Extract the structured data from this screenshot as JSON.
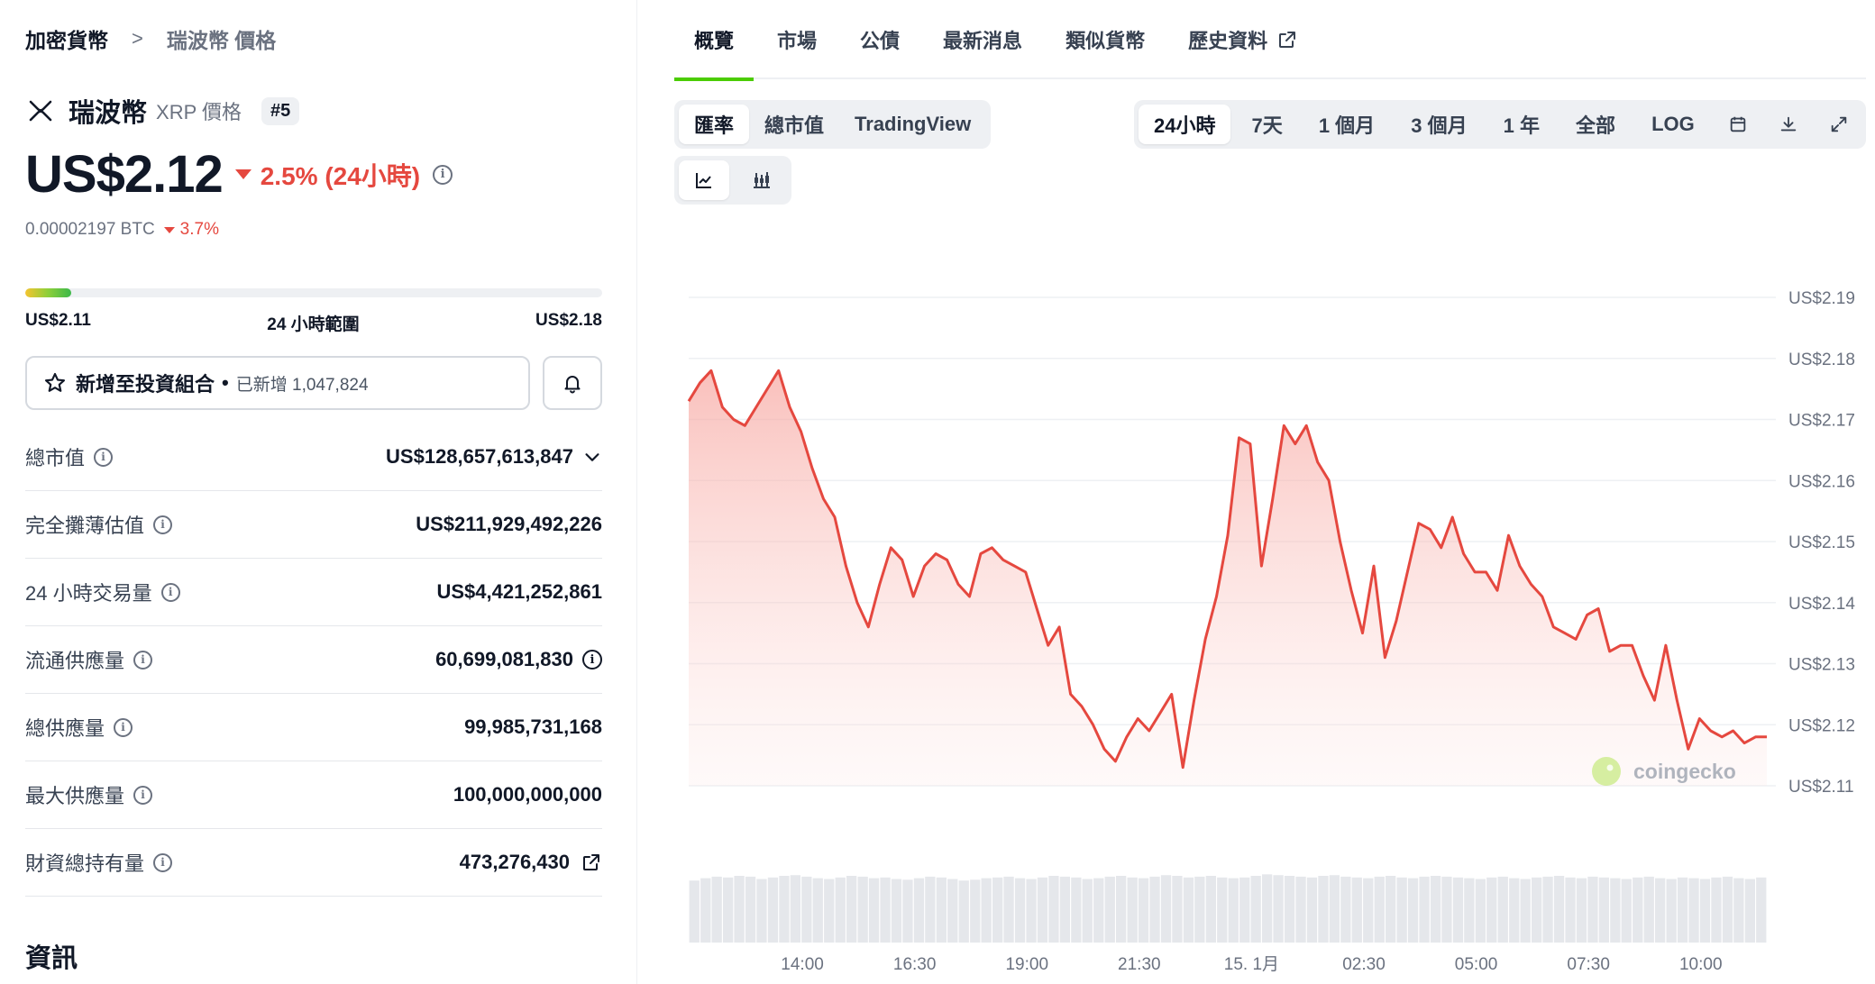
{
  "breadcrumb": {
    "root": "加密貨幣",
    "separator": ">",
    "current": "瑞波幣 價格"
  },
  "coin": {
    "name": "瑞波幣",
    "symbol_label": "XRP 價格",
    "rank": "#5"
  },
  "price": {
    "value": "US$2.12",
    "change_24h": "2.5% (24小時)",
    "btc_value": "0.00002197 BTC",
    "btc_change": "3.7%"
  },
  "range_24h": {
    "low": "US$2.11",
    "label": "24 小時範圍",
    "high": "US$2.18",
    "position_fraction": 0.08
  },
  "portfolio": {
    "label": "新增至投資組合",
    "dot": "•",
    "added": "已新增 1,047,824"
  },
  "stats": [
    {
      "label": "總市值",
      "value": "US$128,657,613,847"
    },
    {
      "label": "完全攤薄估值",
      "value": "US$211,929,492,226"
    },
    {
      "label": "24 小時交易量",
      "value": "US$4,421,252,861"
    },
    {
      "label": "流通供應量",
      "value": "60,699,081,830"
    },
    {
      "label": "總供應量",
      "value": "99,985,731,168"
    },
    {
      "label": "最大供應量",
      "value": "100,000,000,000"
    },
    {
      "label": "財資總持有量",
      "value": "473,276,430"
    }
  ],
  "info_section_title": "資訊",
  "tabs": [
    "概覽",
    "市場",
    "公債",
    "最新消息",
    "類似貨幣",
    "歷史資料"
  ],
  "chart_type_tabs": [
    "匯率",
    "總市值",
    "TradingView"
  ],
  "range_tabs": [
    "24小時",
    "7天",
    "1 個月",
    "3 個月",
    "1 年",
    "全部",
    "LOG"
  ],
  "watermark": "coingecko",
  "colors": {
    "accent_green": "#4bcc00",
    "down_red": "#e5483f",
    "line": "#e5483f"
  },
  "chart_data": {
    "type": "area",
    "title": "",
    "xlabel": "",
    "ylabel": "",
    "y_ticks": [
      "US$2.19",
      "US$2.18",
      "US$2.17",
      "US$2.16",
      "US$2.15",
      "US$2.14",
      "US$2.13",
      "US$2.12",
      "US$2.11"
    ],
    "ylim": [
      2.106,
      2.19
    ],
    "x_ticks": [
      "14:00",
      "16:30",
      "19:00",
      "21:30",
      "15. 1月",
      "02:30",
      "05:00",
      "07:30",
      "10:00"
    ],
    "x_tick_positions_hours": [
      2.53,
      5.03,
      7.53,
      10.03,
      12.53,
      15.03,
      17.53,
      20.03,
      22.53
    ],
    "series": [
      {
        "x_hours": [
          0,
          0.25,
          0.5,
          0.75,
          1.0,
          1.25,
          1.5,
          1.75,
          2.0,
          2.25,
          2.5,
          2.75,
          3.0,
          3.25,
          3.5,
          3.75,
          4.0,
          4.25,
          4.5,
          4.75,
          5.0,
          5.25,
          5.5,
          5.75,
          6.0,
          6.25,
          6.5,
          6.75,
          7.0,
          7.25,
          7.5,
          7.75,
          8.0,
          8.25,
          8.5,
          8.75,
          9.0,
          9.25,
          9.5,
          9.75,
          10.0,
          10.25,
          10.5,
          10.75,
          11.0,
          11.25,
          11.5,
          11.75,
          12.0,
          12.25,
          12.5,
          12.75,
          13.0,
          13.25,
          13.5,
          13.75,
          14.0,
          14.25,
          14.5,
          14.75,
          15.0,
          15.25,
          15.5,
          15.75,
          16.0,
          16.25,
          16.5,
          16.75,
          17.0,
          17.25,
          17.5,
          17.75,
          18.0,
          18.25,
          18.5,
          18.75,
          19.0,
          19.25,
          19.5,
          19.75,
          20.0,
          20.25,
          20.5,
          20.75,
          21.0,
          21.25,
          21.5,
          21.75,
          22.0,
          22.25,
          22.5,
          22.75,
          23.0,
          23.25,
          23.5,
          23.75,
          24.0
        ],
        "values": [
          2.173,
          2.176,
          2.178,
          2.172,
          2.17,
          2.169,
          2.172,
          2.175,
          2.178,
          2.172,
          2.168,
          2.162,
          2.157,
          2.154,
          2.146,
          2.14,
          2.136,
          2.143,
          2.149,
          2.147,
          2.141,
          2.146,
          2.148,
          2.147,
          2.143,
          2.141,
          2.148,
          2.149,
          2.147,
          2.146,
          2.145,
          2.139,
          2.133,
          2.136,
          2.125,
          2.123,
          2.12,
          2.116,
          2.114,
          2.118,
          2.121,
          2.119,
          2.122,
          2.125,
          2.113,
          2.124,
          2.134,
          2.141,
          2.151,
          2.167,
          2.166,
          2.146,
          2.157,
          2.169,
          2.166,
          2.169,
          2.163,
          2.16,
          2.15,
          2.142,
          2.135,
          2.146,
          2.131,
          2.137,
          2.145,
          2.153,
          2.152,
          2.149,
          2.154,
          2.148,
          2.145,
          2.145,
          2.142,
          2.151,
          2.146,
          2.143,
          2.141,
          2.136,
          2.135,
          2.134,
          2.138,
          2.139,
          2.132,
          2.133,
          2.133,
          2.128,
          2.124,
          2.133,
          2.124,
          2.116,
          2.121,
          2.119,
          2.118,
          2.119,
          2.117,
          2.118,
          2.118
        ]
      }
    ],
    "volume_relative": [
      0.8,
      0.83,
      0.85,
      0.84,
      0.86,
      0.85,
      0.82,
      0.84,
      0.86,
      0.87,
      0.85,
      0.83,
      0.82,
      0.84,
      0.86,
      0.85,
      0.83,
      0.84,
      0.82,
      0.81,
      0.83,
      0.85,
      0.84,
      0.82,
      0.8,
      0.81,
      0.83,
      0.84,
      0.85,
      0.83,
      0.82,
      0.84,
      0.86,
      0.85,
      0.84,
      0.82,
      0.83,
      0.85,
      0.86,
      0.84,
      0.83,
      0.85,
      0.87,
      0.86,
      0.84,
      0.85,
      0.86,
      0.84,
      0.83,
      0.84,
      0.86,
      0.88,
      0.87,
      0.86,
      0.85,
      0.84,
      0.86,
      0.87,
      0.85,
      0.84,
      0.83,
      0.85,
      0.86,
      0.84,
      0.83,
      0.85,
      0.86,
      0.85,
      0.84,
      0.83,
      0.82,
      0.84,
      0.85,
      0.83,
      0.82,
      0.84,
      0.85,
      0.86,
      0.84,
      0.83,
      0.85,
      0.84,
      0.83,
      0.82,
      0.84,
      0.85,
      0.83,
      0.82,
      0.84,
      0.83,
      0.82,
      0.84,
      0.85,
      0.83,
      0.82,
      0.84
    ]
  }
}
